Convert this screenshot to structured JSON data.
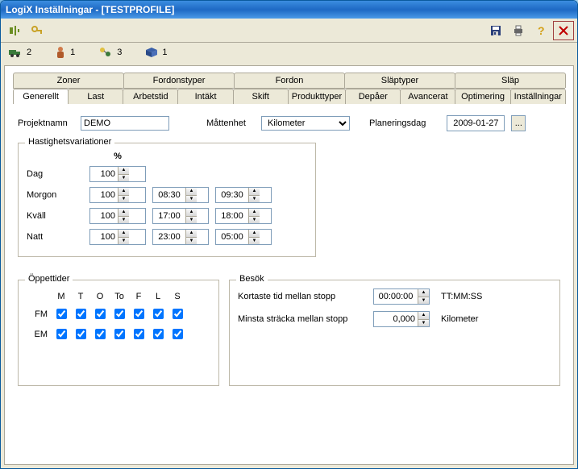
{
  "window": {
    "title": "LogiX Inställningar - [TESTPROFILE]"
  },
  "toolbar": {
    "icons": {
      "align": "align-icon",
      "key": "key-icon",
      "save": "save-icon",
      "print": "print-icon",
      "help": "help-icon",
      "close": "close-icon"
    }
  },
  "status": {
    "trucks": "2",
    "persons": "1",
    "routes": "3",
    "packages": "1"
  },
  "tabs_top": [
    "Zoner",
    "Fordonstyper",
    "Fordon",
    "Släptyper",
    "Släp"
  ],
  "tabs_bottom": [
    "Generellt",
    "Last",
    "Arbetstid",
    "Intäkt",
    "Skift",
    "Produkttyper",
    "Depåer",
    "Avancerat",
    "Optimering",
    "Inställningar"
  ],
  "active_tab": "Generellt",
  "project": {
    "label": "Projektnamn",
    "value": "DEMO",
    "unit_label": "Måttenhet",
    "unit_value": "Kilometer",
    "planning_label": "Planeringsdag",
    "planning_value": "2009-01-27",
    "ellipsis": "..."
  },
  "speed": {
    "legend": "Hastighetsvariationer",
    "percent_header": "%",
    "rows": [
      {
        "label": "Dag",
        "pct": "100",
        "from": "",
        "to": ""
      },
      {
        "label": "Morgon",
        "pct": "100",
        "from": "08:30",
        "to": "09:30"
      },
      {
        "label": "Kväll",
        "pct": "100",
        "from": "17:00",
        "to": "18:00"
      },
      {
        "label": "Natt",
        "pct": "100",
        "from": "23:00",
        "to": "05:00"
      }
    ]
  },
  "opening": {
    "legend": "Öppettider",
    "days": [
      "M",
      "T",
      "O",
      "To",
      "F",
      "L",
      "S"
    ],
    "periods": [
      {
        "label": "FM",
        "checked": [
          true,
          true,
          true,
          true,
          true,
          true,
          true
        ]
      },
      {
        "label": "EM",
        "checked": [
          true,
          true,
          true,
          true,
          true,
          true,
          true
        ]
      }
    ]
  },
  "visit": {
    "legend": "Besök",
    "min_time_label": "Kortaste tid mellan stopp",
    "min_time_value": "00:00:00",
    "min_time_unit": "TT:MM:SS",
    "min_dist_label": "Minsta sträcka mellan stopp",
    "min_dist_value": "0,000",
    "min_dist_unit": "Kilometer"
  },
  "colors": {
    "title_grad_a": "#3b8de0",
    "panel": "#ece9d8",
    "border": "#aca899",
    "input_border": "#7f9db9"
  }
}
